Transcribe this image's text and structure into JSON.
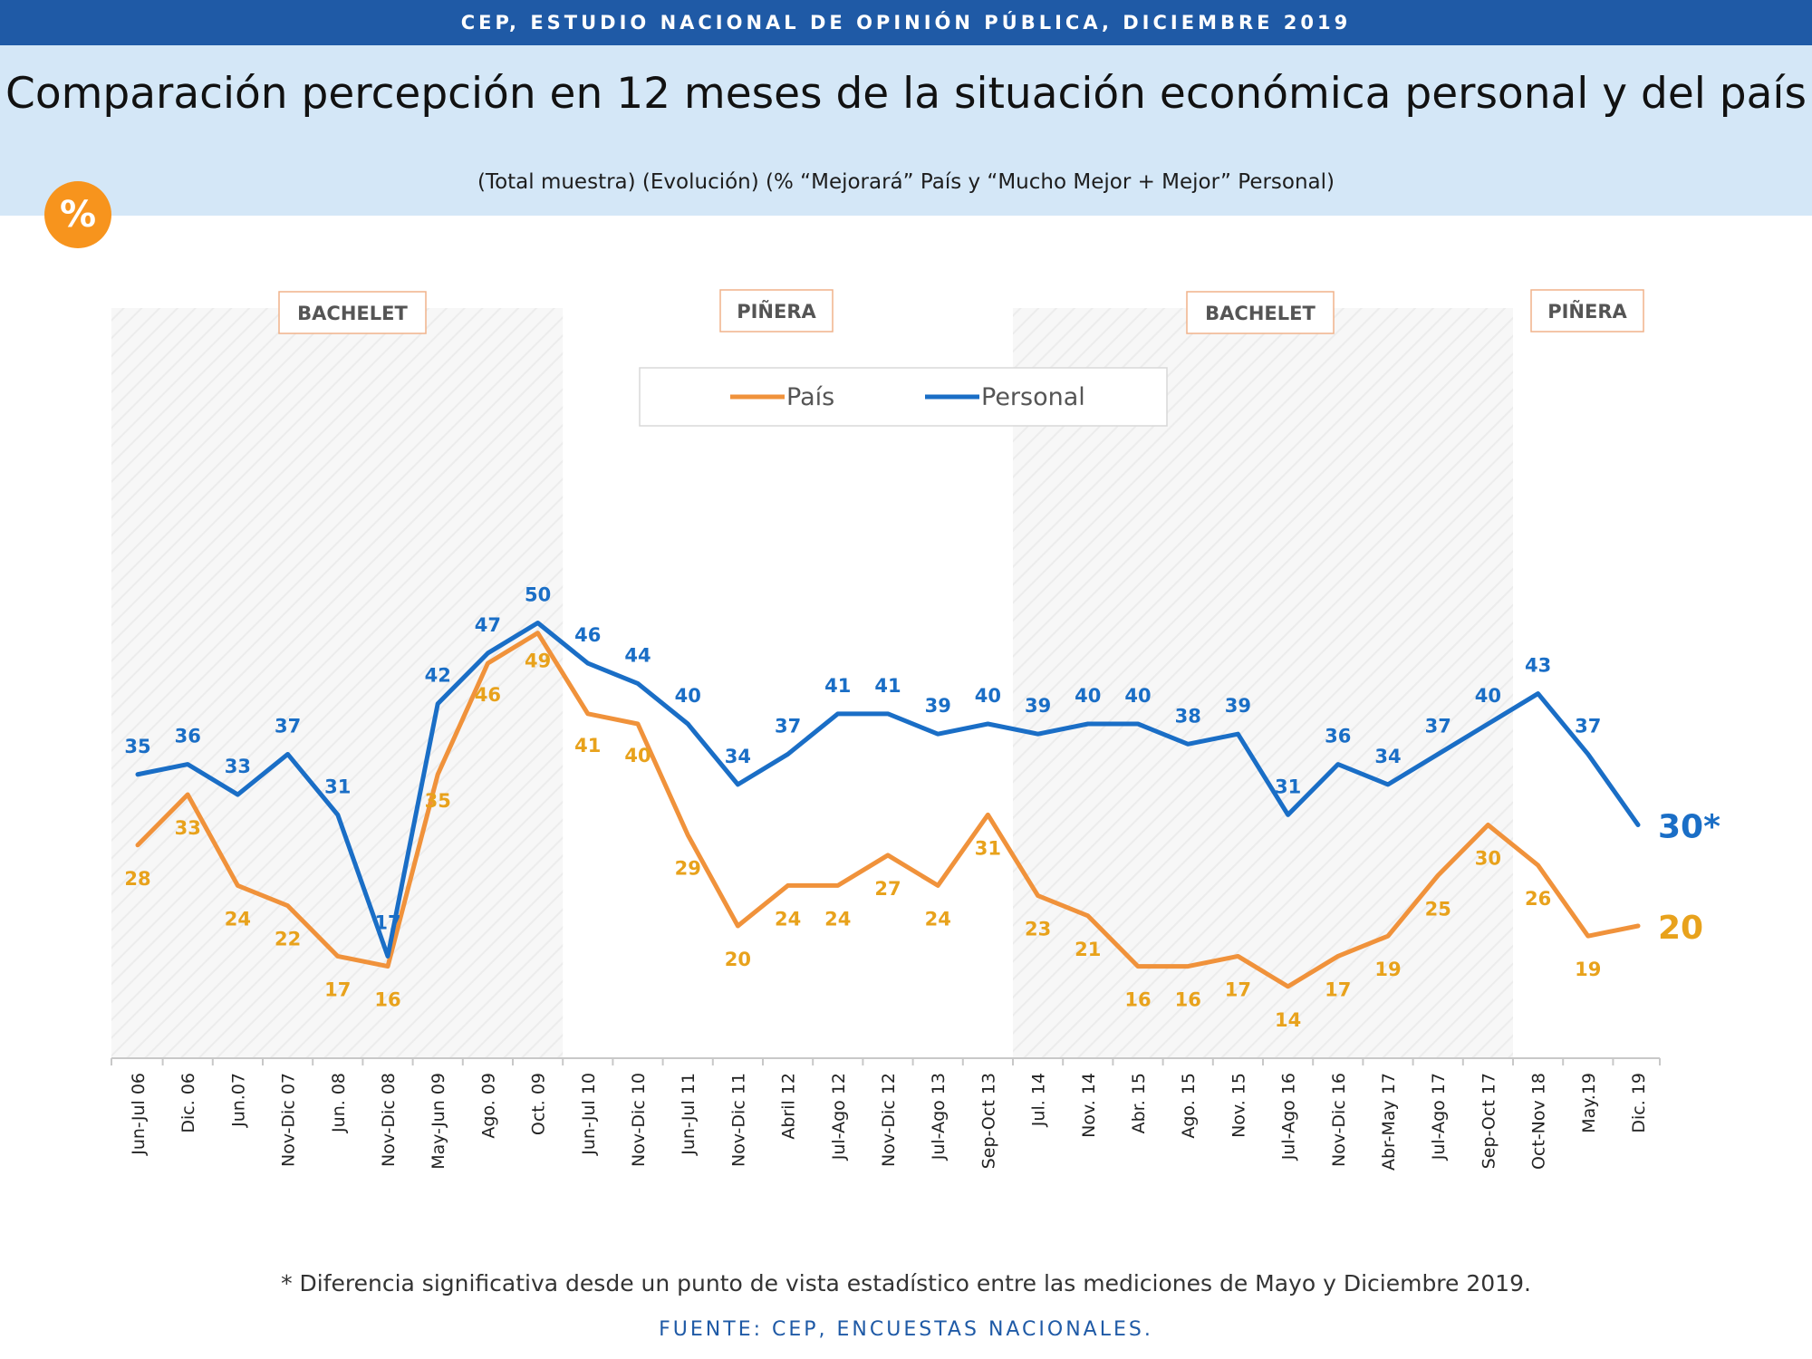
{
  "header": {
    "top_bar": "CEP, ESTUDIO NACIONAL DE OPINIÓN PÚBLICA, DICIEMBRE 2019",
    "title": "Comparación percepción en 12 meses de la situación económica personal y del país",
    "subtitle": "(Total muestra) (Evolución) (% “Mejorará” País y “Mucho Mejor + Mejor” Personal)",
    "badge": "%"
  },
  "colors": {
    "pais": "#f0923b",
    "personal": "#1a6ec6",
    "pais_label": "#e8a21c",
    "personal_label": "#1a6ec6",
    "period_label": "#555555",
    "period_border": "#f0b28a",
    "top_bar": "#1f5aa6",
    "header_band": "#d4e7f7",
    "badge": "#f7941d"
  },
  "chart_data": {
    "type": "line",
    "categories": [
      "Jun-Jul 06",
      "Dic. 06",
      "Jun.07",
      "Nov-Dic 07",
      "Jun. 08",
      "Nov-Dic 08",
      "May-Jun 09",
      "Ago. 09",
      "Oct. 09",
      "Jun-Jul 10",
      "Nov-Dic 10",
      "Jun-Jul 11",
      "Nov-Dic 11",
      "Abril 12",
      "Jul-Ago 12",
      "Nov-Dic 12",
      "Jul-Ago 13",
      "Sep-Oct 13",
      "Jul. 14",
      "Nov. 14",
      "Abr. 15",
      "Ago. 15",
      "Nov. 15",
      "Jul-Ago 16",
      "Nov-Dic 16",
      "Abr-May 17",
      "Jul-Ago 17",
      "Sep-Oct 17",
      "Oct-Nov 18",
      "May.19",
      "Dic. 19"
    ],
    "series": [
      {
        "name": "País",
        "values": [
          28,
          33,
          24,
          22,
          17,
          16,
          35,
          46,
          49,
          41,
          40,
          29,
          20,
          24,
          24,
          27,
          24,
          31,
          23,
          21,
          16,
          16,
          17,
          14,
          17,
          19,
          25,
          30,
          26,
          19,
          20
        ],
        "last_label": "20"
      },
      {
        "name": "Personal",
        "values": [
          35,
          36,
          33,
          37,
          31,
          17,
          42,
          47,
          50,
          46,
          44,
          40,
          34,
          37,
          41,
          41,
          39,
          40,
          39,
          40,
          40,
          38,
          39,
          31,
          36,
          34,
          37,
          40,
          43,
          37,
          30
        ],
        "last_label": "30*"
      }
    ],
    "periods": [
      {
        "label": "BACHELET",
        "start": 0,
        "end": 8,
        "shaded": true
      },
      {
        "label": "PIÑERA",
        "start": 9,
        "end": 17,
        "shaded": false
      },
      {
        "label": "BACHELET",
        "start": 18,
        "end": 27,
        "shaded": true
      },
      {
        "label": "PIÑERA",
        "start": 28,
        "end": 30,
        "shaded": false
      }
    ],
    "ylim": [
      0,
      60
    ],
    "legend_position": "top-center",
    "grid": false
  },
  "footer": {
    "footnote": "* Diferencia significativa desde un punto de vista estadístico entre las mediciones de Mayo y Diciembre 2019.",
    "source": "FUENTE: CEP, ENCUESTAS NACIONALES."
  }
}
